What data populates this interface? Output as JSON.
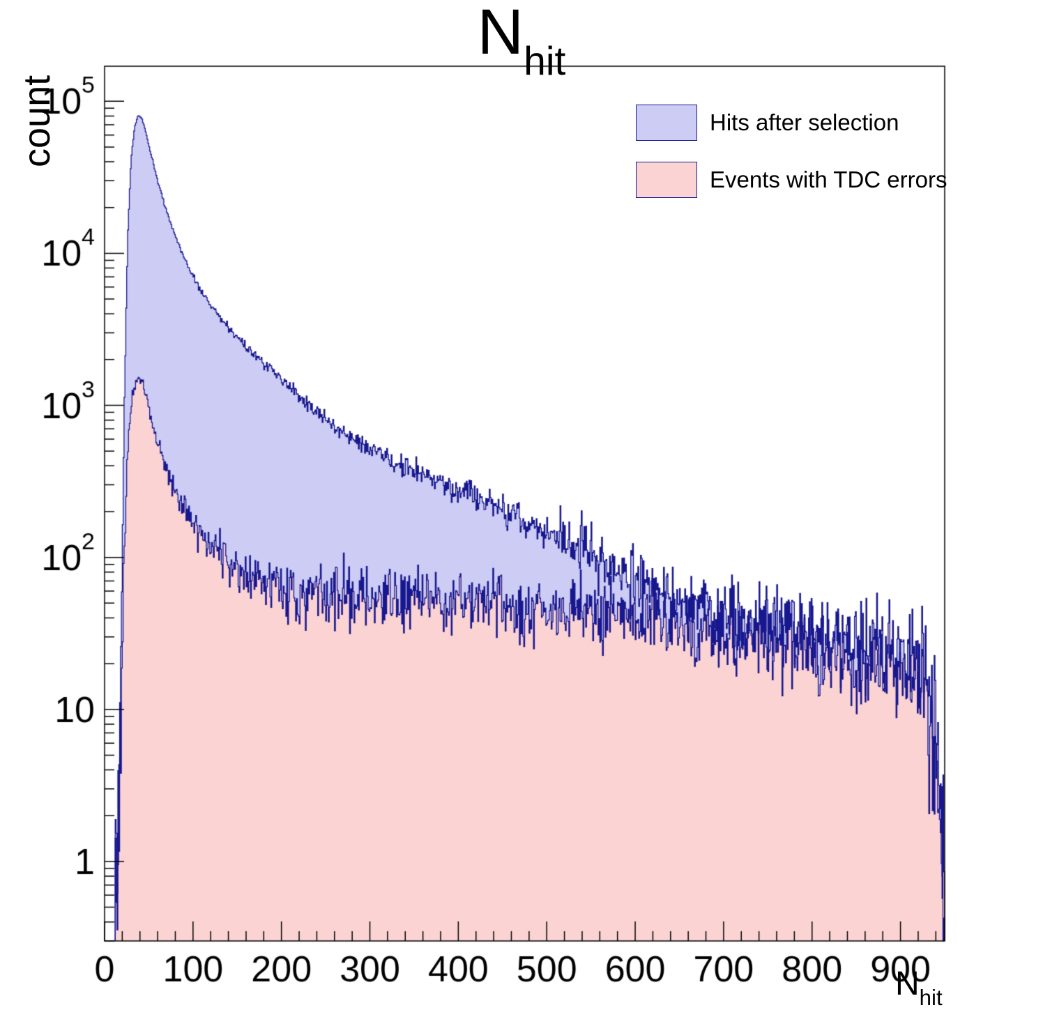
{
  "chart_data": {
    "type": "histogram",
    "title_main": "N",
    "title_sub": "hit",
    "ylabel": "count",
    "xlabel_main": "N",
    "xlabel_sub": "hit",
    "ylog": true,
    "xlim": [
      0,
      950
    ],
    "ylim": [
      0.3,
      170000
    ],
    "x_ticks": [
      0,
      100,
      200,
      300,
      400,
      500,
      600,
      700,
      800,
      900
    ],
    "x_minor_step": 20,
    "y_tick_exponents": [
      0,
      1,
      2,
      3,
      4,
      5
    ],
    "legend_position": "top-right",
    "grid": false,
    "noise_seed": 42,
    "noise_scale": 1.8,
    "noise_cap": 0.32,
    "bin_width": 1,
    "series": [
      {
        "name": "Hits after selection",
        "fill": "#ccccf4",
        "line": "#17178f",
        "peak": {
          "x": 40,
          "y": 80000
        },
        "control_points": [
          [
            12,
            0.8
          ],
          [
            15,
            1.5
          ],
          [
            18,
            10
          ],
          [
            22,
            800
          ],
          [
            26,
            12000
          ],
          [
            30,
            42000
          ],
          [
            34,
            68000
          ],
          [
            38,
            80000
          ],
          [
            42,
            78000
          ],
          [
            46,
            65000
          ],
          [
            52,
            46000
          ],
          [
            60,
            30000
          ],
          [
            70,
            19000
          ],
          [
            80,
            13000
          ],
          [
            90,
            9300
          ],
          [
            100,
            7000
          ],
          [
            110,
            5600
          ],
          [
            120,
            4600
          ],
          [
            130,
            3850
          ],
          [
            140,
            3250
          ],
          [
            150,
            2800
          ],
          [
            165,
            2300
          ],
          [
            180,
            1900
          ],
          [
            200,
            1500
          ],
          [
            215,
            1250
          ],
          [
            230,
            1000
          ],
          [
            250,
            800
          ],
          [
            270,
            660
          ],
          [
            290,
            560
          ],
          [
            310,
            480
          ],
          [
            330,
            420
          ],
          [
            350,
            370
          ],
          [
            375,
            320
          ],
          [
            400,
            275
          ],
          [
            425,
            240
          ],
          [
            450,
            205
          ],
          [
            475,
            175
          ],
          [
            500,
            150
          ],
          [
            525,
            128
          ],
          [
            550,
            108
          ],
          [
            575,
            90
          ],
          [
            600,
            74
          ],
          [
            625,
            62
          ],
          [
            650,
            52
          ],
          [
            675,
            46
          ],
          [
            700,
            41
          ],
          [
            725,
            38
          ],
          [
            750,
            35
          ],
          [
            775,
            32
          ],
          [
            800,
            29
          ],
          [
            825,
            27
          ],
          [
            850,
            25
          ],
          [
            875,
            23
          ],
          [
            900,
            20
          ],
          [
            915,
            17
          ],
          [
            930,
            13
          ],
          [
            938,
            8
          ],
          [
            944,
            3
          ],
          [
            948,
            1
          ],
          [
            950,
            0.7
          ]
        ]
      },
      {
        "name": "Events with TDC errors",
        "fill": "#fbd3d3",
        "line": "#17178f",
        "peak": {
          "x": 38,
          "y": 1500
        },
        "control_points": [
          [
            12,
            0.8
          ],
          [
            15,
            1.2
          ],
          [
            18,
            4
          ],
          [
            22,
            90
          ],
          [
            26,
            500
          ],
          [
            30,
            1000
          ],
          [
            34,
            1350
          ],
          [
            38,
            1500
          ],
          [
            42,
            1430
          ],
          [
            46,
            1200
          ],
          [
            52,
            850
          ],
          [
            60,
            560
          ],
          [
            70,
            380
          ],
          [
            80,
            280
          ],
          [
            90,
            215
          ],
          [
            100,
            170
          ],
          [
            110,
            140
          ],
          [
            120,
            118
          ],
          [
            135,
            98
          ],
          [
            150,
            85
          ],
          [
            170,
            73
          ],
          [
            200,
            63
          ],
          [
            230,
            58
          ],
          [
            260,
            56
          ],
          [
            300,
            55
          ],
          [
            350,
            54
          ],
          [
            400,
            52
          ],
          [
            450,
            49
          ],
          [
            500,
            46
          ],
          [
            550,
            43
          ],
          [
            600,
            39
          ],
          [
            650,
            35
          ],
          [
            700,
            31
          ],
          [
            750,
            28
          ],
          [
            800,
            25
          ],
          [
            850,
            22
          ],
          [
            880,
            20
          ],
          [
            900,
            18
          ],
          [
            915,
            16
          ],
          [
            930,
            12
          ],
          [
            938,
            7
          ],
          [
            944,
            3
          ],
          [
            948,
            1
          ],
          [
            950,
            0.7
          ]
        ]
      }
    ]
  }
}
